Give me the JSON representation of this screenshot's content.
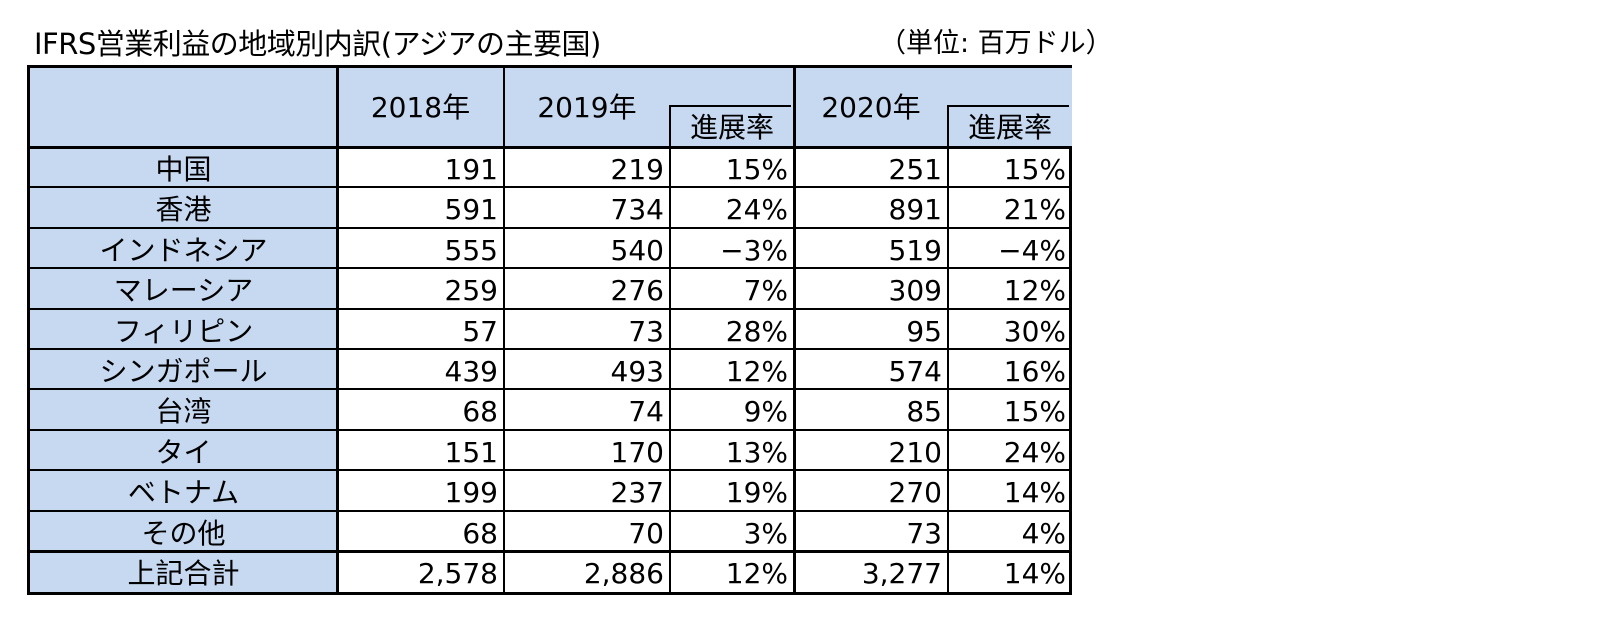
{
  "title": "IFRS営業利益の地域別内訳(アジアの主要国)",
  "unit": "（単位: 百万ドル）",
  "header": {
    "y2018": "2018年",
    "y2019": "2019年",
    "rate2019": "進展率",
    "y2020": "2020年",
    "rate2020": "進展率"
  },
  "rows": [
    {
      "label": "中国",
      "v2018": "191",
      "v2019": "219",
      "r2019": "15%",
      "v2020": "251",
      "r2020": "15%"
    },
    {
      "label": "香港",
      "v2018": "591",
      "v2019": "734",
      "r2019": "24%",
      "v2020": "891",
      "r2020": "21%"
    },
    {
      "label": "インドネシア",
      "v2018": "555",
      "v2019": "540",
      "r2019": "−3%",
      "v2020": "519",
      "r2020": "−4%"
    },
    {
      "label": "マレーシア",
      "v2018": "259",
      "v2019": "276",
      "r2019": "7%",
      "v2020": "309",
      "r2020": "12%"
    },
    {
      "label": "フィリピン",
      "v2018": "57",
      "v2019": "73",
      "r2019": "28%",
      "v2020": "95",
      "r2020": "30%"
    },
    {
      "label": "シンガポール",
      "v2018": "439",
      "v2019": "493",
      "r2019": "12%",
      "v2020": "574",
      "r2020": "16%"
    },
    {
      "label": "台湾",
      "v2018": "68",
      "v2019": "74",
      "r2019": "9%",
      "v2020": "85",
      "r2020": "15%"
    },
    {
      "label": "タイ",
      "v2018": "151",
      "v2019": "170",
      "r2019": "13%",
      "v2020": "210",
      "r2020": "24%"
    },
    {
      "label": "ベトナム",
      "v2018": "199",
      "v2019": "237",
      "r2019": "19%",
      "v2020": "270",
      "r2020": "14%"
    },
    {
      "label": "その他",
      "v2018": "68",
      "v2019": "70",
      "r2019": "3%",
      "v2020": "73",
      "r2020": "4%"
    },
    {
      "label": "上記合計",
      "v2018": "2,578",
      "v2019": "2,886",
      "r2019": "12%",
      "v2020": "3,277",
      "r2020": "14%"
    }
  ]
}
